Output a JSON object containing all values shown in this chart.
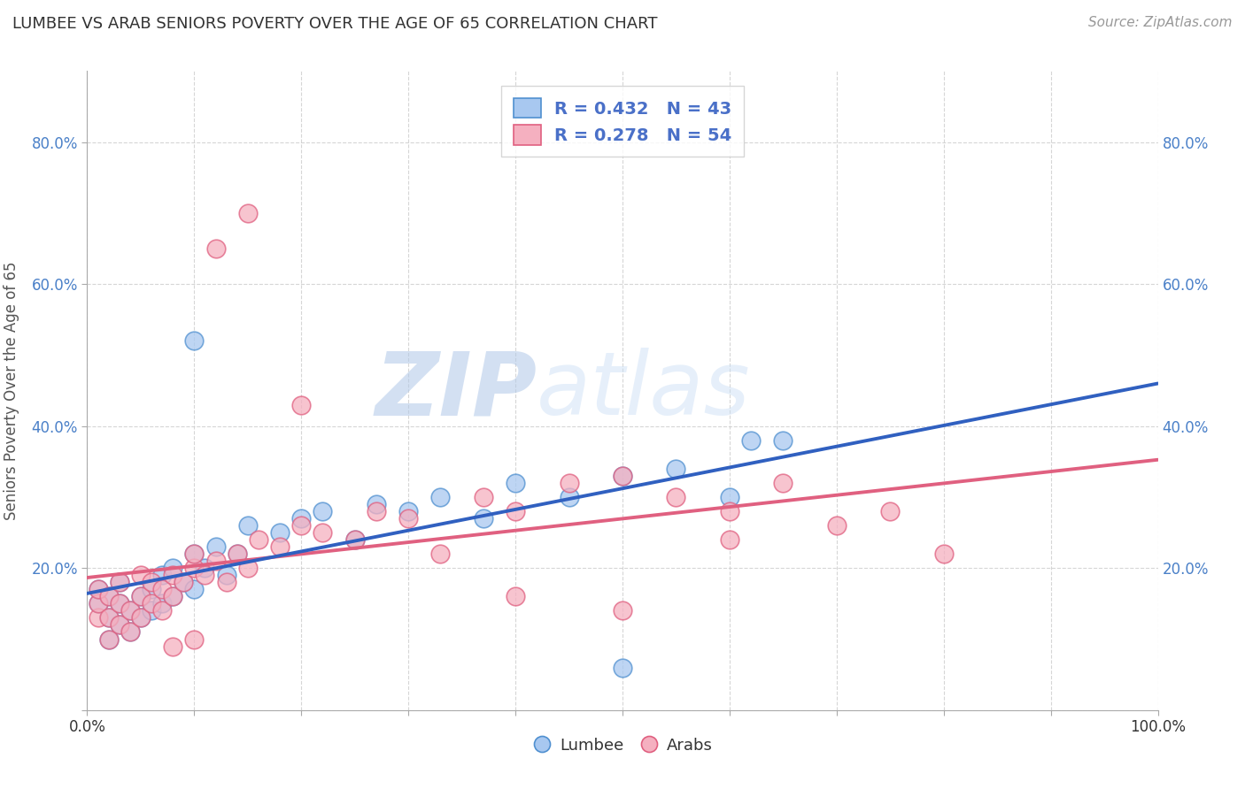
{
  "title": "LUMBEE VS ARAB SENIORS POVERTY OVER THE AGE OF 65 CORRELATION CHART",
  "source": "Source: ZipAtlas.com",
  "ylabel": "Seniors Poverty Over the Age of 65",
  "xlim": [
    0.0,
    1.0
  ],
  "ylim": [
    0.0,
    0.9
  ],
  "lumbee_R": 0.432,
  "lumbee_N": 43,
  "arab_R": 0.278,
  "arab_N": 54,
  "lumbee_color": "#a8c8f0",
  "arab_color": "#f5b0c0",
  "lumbee_edge_color": "#5090d0",
  "arab_edge_color": "#e06080",
  "lumbee_line_color": "#3060c0",
  "arab_line_color": "#e06080",
  "background_color": "#ffffff",
  "grid_color": "#cccccc",
  "title_color": "#333333",
  "legend_text_color": "#4a70c8",
  "watermark_color": "#cce0f0",
  "lumbee_x": [
    0.01,
    0.01,
    0.02,
    0.02,
    0.02,
    0.03,
    0.03,
    0.03,
    0.04,
    0.04,
    0.05,
    0.05,
    0.06,
    0.06,
    0.07,
    0.07,
    0.08,
    0.08,
    0.09,
    0.1,
    0.1,
    0.11,
    0.12,
    0.13,
    0.14,
    0.15,
    0.18,
    0.2,
    0.22,
    0.25,
    0.27,
    0.3,
    0.33,
    0.37,
    0.4,
    0.45,
    0.5,
    0.55,
    0.6,
    0.65,
    0.5,
    0.62,
    0.1
  ],
  "lumbee_y": [
    0.15,
    0.17,
    0.1,
    0.13,
    0.16,
    0.12,
    0.15,
    0.18,
    0.11,
    0.14,
    0.13,
    0.16,
    0.14,
    0.17,
    0.15,
    0.19,
    0.16,
    0.2,
    0.18,
    0.22,
    0.17,
    0.2,
    0.23,
    0.19,
    0.22,
    0.26,
    0.25,
    0.27,
    0.28,
    0.24,
    0.29,
    0.28,
    0.3,
    0.27,
    0.32,
    0.3,
    0.33,
    0.34,
    0.3,
    0.38,
    0.06,
    0.38,
    0.52
  ],
  "arab_x": [
    0.01,
    0.01,
    0.01,
    0.02,
    0.02,
    0.02,
    0.03,
    0.03,
    0.03,
    0.04,
    0.04,
    0.05,
    0.05,
    0.05,
    0.06,
    0.06,
    0.07,
    0.07,
    0.08,
    0.08,
    0.09,
    0.1,
    0.1,
    0.11,
    0.12,
    0.13,
    0.14,
    0.15,
    0.16,
    0.18,
    0.2,
    0.22,
    0.25,
    0.27,
    0.3,
    0.33,
    0.37,
    0.4,
    0.45,
    0.5,
    0.55,
    0.6,
    0.65,
    0.7,
    0.75,
    0.8,
    0.5,
    0.6,
    0.4,
    0.12,
    0.15,
    0.2,
    0.1,
    0.08
  ],
  "arab_y": [
    0.13,
    0.15,
    0.17,
    0.1,
    0.13,
    0.16,
    0.12,
    0.15,
    0.18,
    0.11,
    0.14,
    0.13,
    0.16,
    0.19,
    0.15,
    0.18,
    0.14,
    0.17,
    0.16,
    0.19,
    0.18,
    0.2,
    0.22,
    0.19,
    0.21,
    0.18,
    0.22,
    0.2,
    0.24,
    0.23,
    0.26,
    0.25,
    0.24,
    0.28,
    0.27,
    0.22,
    0.3,
    0.28,
    0.32,
    0.33,
    0.3,
    0.28,
    0.32,
    0.26,
    0.28,
    0.22,
    0.14,
    0.24,
    0.16,
    0.65,
    0.7,
    0.43,
    0.1,
    0.09
  ]
}
